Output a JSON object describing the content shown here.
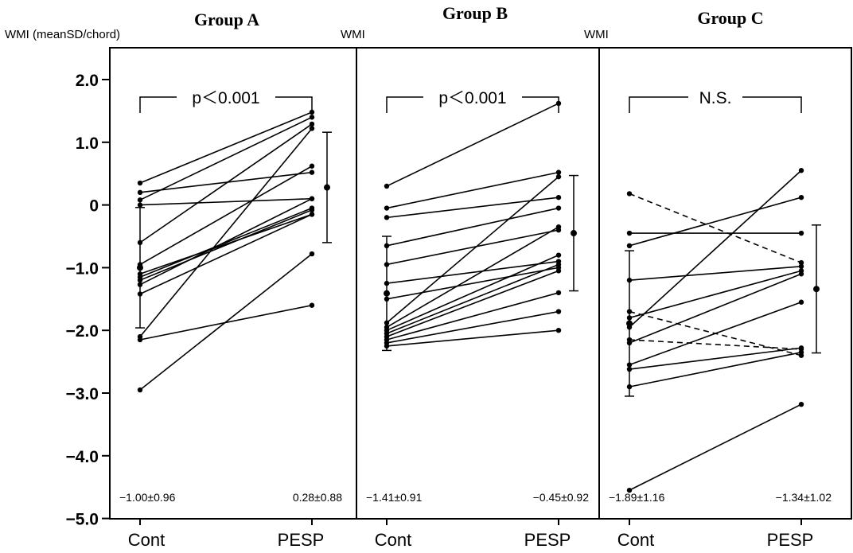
{
  "y_axis_label": "WMI (meanSD/chord)",
  "chart_data": {
    "type": "line",
    "ylim": [
      -5.0,
      2.0
    ],
    "y_ticks": [
      {
        "value": 2.0,
        "label": "2.0"
      },
      {
        "value": 1.0,
        "label": "1.0"
      },
      {
        "value": 0,
        "label": "0"
      },
      {
        "value": -1.0,
        "label": "−1.0"
      },
      {
        "value": -2.0,
        "label": "−2.0"
      },
      {
        "value": -3.0,
        "label": "−3.0"
      },
      {
        "value": -4.0,
        "label": "−4.0"
      },
      {
        "value": -5.0,
        "label": "−5.0"
      }
    ],
    "panels": [
      {
        "title": "Group A",
        "ylabel": "",
        "categories": [
          "Cont",
          "PESP"
        ],
        "significance": "p＜0.001",
        "stats": {
          "cont": "−1.00±0.96",
          "pesp": "0.28±0.88"
        },
        "mean_sd": {
          "cont": [
            -1.0,
            0.96
          ],
          "pesp": [
            0.28,
            0.88
          ]
        },
        "pairs": [
          {
            "cont": 0.35,
            "pesp": 1.48,
            "dashed": false
          },
          {
            "cont": 0.2,
            "pesp": 0.52,
            "dashed": false
          },
          {
            "cont": 0.08,
            "pesp": 1.4,
            "dashed": false
          },
          {
            "cont": 0.0,
            "pesp": 0.1,
            "dashed": false
          },
          {
            "cont": -0.6,
            "pesp": 1.29,
            "dashed": false
          },
          {
            "cont": -0.95,
            "pesp": 0.62,
            "dashed": false
          },
          {
            "cont": -1.1,
            "pesp": -0.15,
            "dashed": false
          },
          {
            "cont": -1.15,
            "pesp": -0.05,
            "dashed": false
          },
          {
            "cont": -1.2,
            "pesp": -0.08,
            "dashed": false
          },
          {
            "cont": -1.27,
            "pesp": 0.1,
            "dashed": false
          },
          {
            "cont": -1.42,
            "pesp": -0.15,
            "dashed": false
          },
          {
            "cont": -2.1,
            "pesp": 1.22,
            "dashed": false
          },
          {
            "cont": -2.15,
            "pesp": -1.6,
            "dashed": false
          },
          {
            "cont": -2.95,
            "pesp": -0.78,
            "dashed": false
          }
        ]
      },
      {
        "title": "Group B",
        "ylabel": "WMI",
        "categories": [
          "Cont",
          "PESP"
        ],
        "significance": "p＜0.001",
        "stats": {
          "cont": "−1.41±0.91",
          "pesp": "−0.45±0.92"
        },
        "mean_sd": {
          "cont": [
            -1.41,
            0.91
          ],
          "pesp": [
            -0.45,
            0.92
          ]
        },
        "pairs": [
          {
            "cont": 0.3,
            "pesp": 1.62,
            "dashed": false
          },
          {
            "cont": -0.05,
            "pesp": 0.52,
            "dashed": false
          },
          {
            "cont": -0.2,
            "pesp": 0.12,
            "dashed": false
          },
          {
            "cont": -0.65,
            "pesp": -0.05,
            "dashed": false
          },
          {
            "cont": -0.95,
            "pesp": -0.4,
            "dashed": false
          },
          {
            "cont": -1.25,
            "pesp": -0.9,
            "dashed": false
          },
          {
            "cont": -1.5,
            "pesp": -1.0,
            "dashed": false
          },
          {
            "cont": -1.88,
            "pesp": 0.45,
            "dashed": false
          },
          {
            "cont": -1.95,
            "pesp": -0.35,
            "dashed": false
          },
          {
            "cont": -2.0,
            "pesp": -0.8,
            "dashed": false
          },
          {
            "cont": -2.05,
            "pesp": -0.95,
            "dashed": false
          },
          {
            "cont": -2.1,
            "pesp": -1.05,
            "dashed": false
          },
          {
            "cont": -2.15,
            "pesp": -1.4,
            "dashed": false
          },
          {
            "cont": -2.2,
            "pesp": -1.7,
            "dashed": false
          },
          {
            "cont": -2.25,
            "pesp": -2.0,
            "dashed": false
          }
        ]
      },
      {
        "title": "Group C",
        "ylabel": "WMI",
        "categories": [
          "Cont",
          "PESP"
        ],
        "significance": "N.S.",
        "stats": {
          "cont": "−1.89±1.16",
          "pesp": "−1.34±1.02"
        },
        "mean_sd": {
          "cont": [
            -1.89,
            1.16
          ],
          "pesp": [
            -1.34,
            1.02
          ]
        },
        "pairs": [
          {
            "cont": 0.18,
            "pesp": -0.92,
            "dashed": true
          },
          {
            "cont": -0.45,
            "pesp": -0.45,
            "dashed": false
          },
          {
            "cont": -0.65,
            "pesp": 0.12,
            "dashed": false
          },
          {
            "cont": -1.2,
            "pesp": -0.98,
            "dashed": false
          },
          {
            "cont": -1.7,
            "pesp": -2.4,
            "dashed": true
          },
          {
            "cont": -1.8,
            "pesp": -1.05,
            "dashed": false
          },
          {
            "cont": -1.95,
            "pesp": 0.55,
            "dashed": false
          },
          {
            "cont": -2.15,
            "pesp": -2.3,
            "dashed": true
          },
          {
            "cont": -2.2,
            "pesp": -1.1,
            "dashed": false
          },
          {
            "cont": -2.55,
            "pesp": -1.55,
            "dashed": false
          },
          {
            "cont": -2.62,
            "pesp": -2.28,
            "dashed": false
          },
          {
            "cont": -2.9,
            "pesp": -2.35,
            "dashed": false
          },
          {
            "cont": -4.55,
            "pesp": -3.18,
            "dashed": false
          }
        ]
      }
    ]
  }
}
